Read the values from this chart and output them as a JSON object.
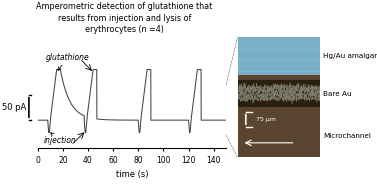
{
  "title": "Amperometric detection of glutathione that\nresults from injection and lysis of\nerythrocytes (n =4)",
  "xlabel": "time (s)",
  "ylabel": "50 pA",
  "xlim": [
    0,
    150
  ],
  "line_color": "#444444",
  "annotation_glutathione": "glutathione",
  "annotation_injection": "injection",
  "scale_bar_label": "75 μm",
  "label_amalgam": "Hg/Au amalgam",
  "label_bare_au": "Bare Au",
  "label_microchannel": "Microchannel",
  "amalgam_color": "#7aafc8",
  "bare_au_bg": "#3d3020",
  "panel_bg": "#5a4530"
}
